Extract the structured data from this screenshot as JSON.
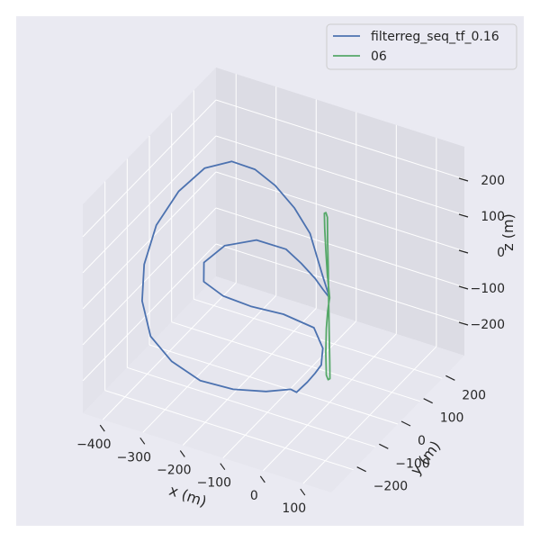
{
  "chart_data": {
    "type": "line",
    "projection": "3d",
    "colors": {
      "figure_bg": "#ffffff",
      "axes_bg": "#eaeaf2",
      "pane_left": "#e3e3eb",
      "pane_right": "#dcdce4",
      "pane_floor": "#e6e6ee",
      "grid": "#ffffff"
    },
    "xlabel": "x (m)",
    "ylabel": "y (m)",
    "zlabel": "z (m)",
    "xlim": [
      -450,
      170
    ],
    "ylim": [
      -300,
      300
    ],
    "zlim": [
      -290,
      290
    ],
    "xticks": [
      -400,
      -300,
      -200,
      -100,
      0,
      100
    ],
    "xtick_labels": [
      "−400",
      "−300",
      "−200",
      "−100",
      "0",
      "100"
    ],
    "yticks": [
      -200,
      -100,
      0,
      100,
      200
    ],
    "ytick_labels": [
      "−200",
      "−100",
      "0",
      "100",
      "200"
    ],
    "zticks": [
      -200,
      -100,
      0,
      100,
      200
    ],
    "ztick_labels": [
      "−200",
      "−100",
      "0",
      "100",
      "200"
    ],
    "legend": {
      "loc": "upper right"
    },
    "series": [
      {
        "name": "filterreg_seq_tf_0.16",
        "color": "#4c72b0",
        "points": [
          [
            0,
            0,
            0
          ],
          [
            -16,
            0,
            50
          ],
          [
            -35,
            5,
            100
          ],
          [
            -60,
            20,
            145
          ],
          [
            -110,
            40,
            185
          ],
          [
            -170,
            62,
            212
          ],
          [
            -230,
            78,
            226
          ],
          [
            -290,
            82,
            224
          ],
          [
            -345,
            60,
            200
          ],
          [
            -385,
            15,
            150
          ],
          [
            -405,
            -50,
            90
          ],
          [
            -402,
            -110,
            20
          ],
          [
            -385,
            -150,
            -50
          ],
          [
            -350,
            -175,
            -120
          ],
          [
            -300,
            -170,
            -175
          ],
          [
            -240,
            -150,
            -220
          ],
          [
            -180,
            -110,
            -248
          ],
          [
            -120,
            -70,
            -258
          ],
          [
            -75,
            -40,
            -255
          ],
          [
            -55,
            -50,
            -250
          ],
          [
            -50,
            -10,
            -245
          ],
          [
            -45,
            15,
            -235
          ],
          [
            -32,
            20,
            -210
          ],
          [
            -25,
            10,
            -180
          ],
          [
            -20,
            5,
            -150
          ],
          [
            -45,
            10,
            -105
          ],
          [
            -110,
            -10,
            -78
          ],
          [
            -175,
            -40,
            -60
          ],
          [
            -230,
            -65,
            -35
          ],
          [
            -270,
            -80,
            0
          ],
          [
            -275,
            -70,
            45
          ],
          [
            -240,
            -40,
            85
          ],
          [
            -180,
            -5,
            100
          ],
          [
            -120,
            20,
            80
          ],
          [
            -85,
            25,
            50
          ],
          [
            -50,
            25,
            20
          ],
          [
            -25,
            15,
            5
          ],
          [
            0,
            0,
            0
          ]
        ]
      },
      {
        "name": "06",
        "color": "#55a868",
        "points": [
          [
            0,
            0,
            0
          ],
          [
            -8,
            4,
            60
          ],
          [
            -14,
            8,
            120
          ],
          [
            -18,
            10,
            180
          ],
          [
            -20,
            12,
            220
          ],
          [
            -15,
            10,
            225
          ],
          [
            -10,
            8,
            215
          ],
          [
            -9,
            7,
            150
          ],
          [
            -7,
            6,
            80
          ],
          [
            -5,
            4,
            0
          ],
          [
            -3,
            3,
            -90
          ],
          [
            -1,
            2,
            -180
          ],
          [
            0,
            1,
            -225
          ],
          [
            -5,
            2,
            -230
          ],
          [
            -10,
            3,
            -220
          ],
          [
            -12,
            4,
            -160
          ],
          [
            -10,
            3,
            -90
          ],
          [
            -6,
            2,
            -40
          ],
          [
            -2,
            1,
            -10
          ],
          [
            0,
            0,
            0
          ]
        ]
      }
    ]
  }
}
